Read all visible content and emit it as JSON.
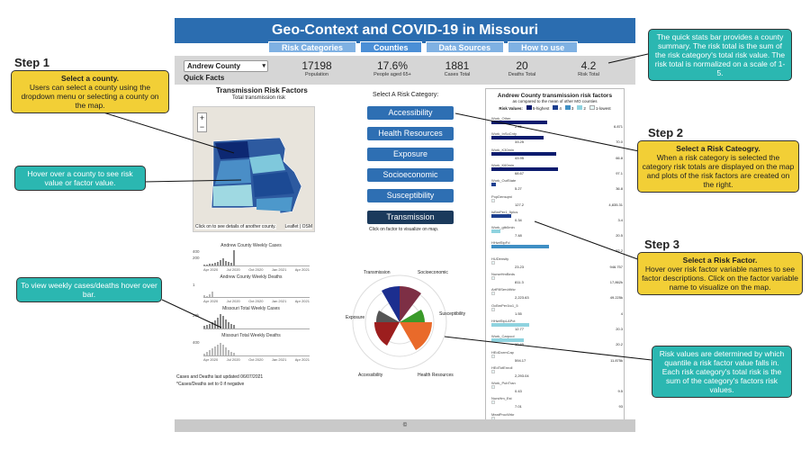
{
  "app": {
    "title": "Geo-Context and COVID-19 in Missouri",
    "tabs": [
      {
        "label": "Risk Categories",
        "active": false
      },
      {
        "label": "Counties",
        "active": true
      },
      {
        "label": "Data Sources",
        "active": false
      },
      {
        "label": "How to use",
        "active": false
      }
    ],
    "county_selected": "Andrew County",
    "quick_facts_label": "Quick Facts",
    "stats": [
      {
        "value": "17198",
        "label": "Population"
      },
      {
        "value": "17.6%",
        "label": "People aged 65+"
      },
      {
        "value": "1881",
        "label": "Cases Total"
      },
      {
        "value": "20",
        "label": "Deaths Total"
      },
      {
        "value": "4.2",
        "label": "Risk Total"
      }
    ],
    "map_title": "Transmission Risk Factors",
    "map_subtitle": "Total transmission risk",
    "map_hint": "Click on to see details of another county.",
    "map_attrib": "Leaflet | OSM",
    "weekly": {
      "chart1": "Andrew County Weekly Cases",
      "chart2": "Andrew County Weekly Deaths",
      "chart3": "Missouri Total Weekly Cases",
      "chart4": "Missouri Total Weekly Deaths",
      "xticks": [
        "Apr 2020",
        "Jul 2020",
        "Oct 2020",
        "Jan 2021",
        "Apr 2021"
      ],
      "y1": [
        "400",
        "200",
        "0"
      ],
      "y2": [
        "1",
        "0"
      ],
      "y3": [
        "20k",
        "10k"
      ],
      "y4": [
        "400",
        "200"
      ],
      "note1": "Cases and Deaths last updated 06/07/2021",
      "note2": "*Cases/Deaths set to 0 if negative"
    },
    "category_header": "Select A Risk Category:",
    "categories": [
      "Accessibility",
      "Health Resources",
      "Exposure",
      "Socioeconomic",
      "Susceptibility",
      "Transmission"
    ],
    "category_note": "Click on factor to visualize on map.",
    "radar_labels": [
      "Transmission",
      "Socioeconomic",
      "Susceptibility",
      "Health Resources",
      "Accessibility",
      "Exposure"
    ],
    "factor_panel": {
      "title": "Andrew County transmission risk factors",
      "subtitle": "as compared to the mean of other MO counties",
      "legend_label": "Risk Values:",
      "legend": [
        {
          "label": "5-highest",
          "color": "#0b1b6e"
        },
        {
          "label": "4",
          "color": "#1d3f8f"
        },
        {
          "label": "3",
          "color": "#3f8fc4"
        },
        {
          "label": "2",
          "color": "#8fd3df"
        },
        {
          "label": "1-lowest",
          "color": "#e6f7f7"
        }
      ],
      "factors": [
        {
          "name": "Work_Other",
          "left": "2.45",
          "right": "6.871",
          "fill": 0.62,
          "color": "#0b1b6e"
        },
        {
          "name": "Work_InSoCnty",
          "left": "33.25",
          "right": "70.0",
          "fill": 0.58,
          "color": "#0b1b6e"
        },
        {
          "name": "Work_K30min",
          "left": "43.95",
          "right": "66.8",
          "fill": 0.72,
          "color": "#0b1b6e"
        },
        {
          "name": "Work_K60min",
          "left": "68.67",
          "right": "97.1",
          "fill": 0.74,
          "color": "#0b1b6e"
        },
        {
          "name": "Work_OutState",
          "left": "5.27",
          "right": "36.8",
          "fill": 0.05,
          "color": "#1d3f8f"
        },
        {
          "name": "PopDensqmi",
          "left": "127.2",
          "right": "4,835.31",
          "fill": 0.02,
          "color": "#e6f7f7"
        },
        {
          "name": "IsBmPer1_5plus",
          "left": "0.34",
          "right": "3.4",
          "fill": 0.22,
          "color": "#1d3f8f"
        },
        {
          "name": "Work_gtb0min",
          "left": "7.48",
          "right": "20.5",
          "fill": 0.1,
          "color": "#8fd3df"
        },
        {
          "name": "HHwtStpFd",
          "left": "",
          "right": "52.2",
          "fill": 0.64,
          "color": "#3f8fc4"
        },
        {
          "name": "HUDensity",
          "left": "23.23",
          "right": "946.757",
          "fill": 0.02,
          "color": "#e6f7f7"
        },
        {
          "name": "NurseHmBeds",
          "left": "811.3",
          "right": "17,862k",
          "fill": 0.02,
          "color": "#e6f7f7"
        },
        {
          "name": "ArtFillServWrkr",
          "left": "2,223.63",
          "right": "49.225k",
          "fill": 0.02,
          "color": "#e6f7f7"
        },
        {
          "name": "OcBmPer1to1_5",
          "left": "1.55",
          "right": "4",
          "fill": 0.02,
          "color": "#e6f7f7"
        },
        {
          "name": "HHwtStpLAPct",
          "left": "12.77",
          "right": "20.3",
          "fill": 0.42,
          "color": "#8fd3df"
        },
        {
          "name": "Work_Carpool",
          "left": "10.85",
          "right": "20.2",
          "fill": 0.36,
          "color": "#8fd3df"
        },
        {
          "name": "HEdDormCap",
          "left": "594.17",
          "right": "11.875k",
          "fill": 0.02,
          "color": "#e6f7f7"
        },
        {
          "name": "HEdTotEnroll",
          "left": "2,293.04",
          "right": "",
          "fill": 0.02,
          "color": "#e6f7f7"
        },
        {
          "name": "Work_PubTran",
          "left": "0.43",
          "right": "9.5",
          "fill": 0.02,
          "color": "#e6f7f7"
        },
        {
          "name": "NursHm_Est",
          "left": "7.01",
          "right": "93",
          "fill": 0.02,
          "color": "#e6f7f7"
        },
        {
          "name": "MeatProcWrkr",
          "left": "155.98",
          "right": "4500",
          "fill": 0.02,
          "color": "#e6f7f7"
        }
      ]
    },
    "footer": "©"
  },
  "annotations": {
    "step1": "Step 1",
    "step1_title": "Select a county.",
    "step1_text": "Users can select a county using the dropdown menu or selecting a county on the map.",
    "step2": "Step 2",
    "step2_title": "Select a Risk Cateogry.",
    "step2_text": "When a risk category is selected the category risk totals are displayed on the map and plots of the risk factors are created on the right.",
    "step3": "Step 3",
    "step3_title": "Select a Risk Factor.",
    "step3_text": "Hover over risk factor variable names to see factor descriptions. Click on the factor variable name to visualize on the map.",
    "hover_county": "Hover over a county to see risk value or factor value.",
    "weekly_hover": "To view weekly cases/deaths hover over bar.",
    "quick_stats": "The quick stats bar provides a county summary. The risk total is the sum of the risk category's total risk value. The risk total is normalized on a scale of 1-5.",
    "risk_values": "Risk values are determined by which quantile a risk factor value falls in. Each risk category's total risk is the sum of the category's factors risk values."
  }
}
